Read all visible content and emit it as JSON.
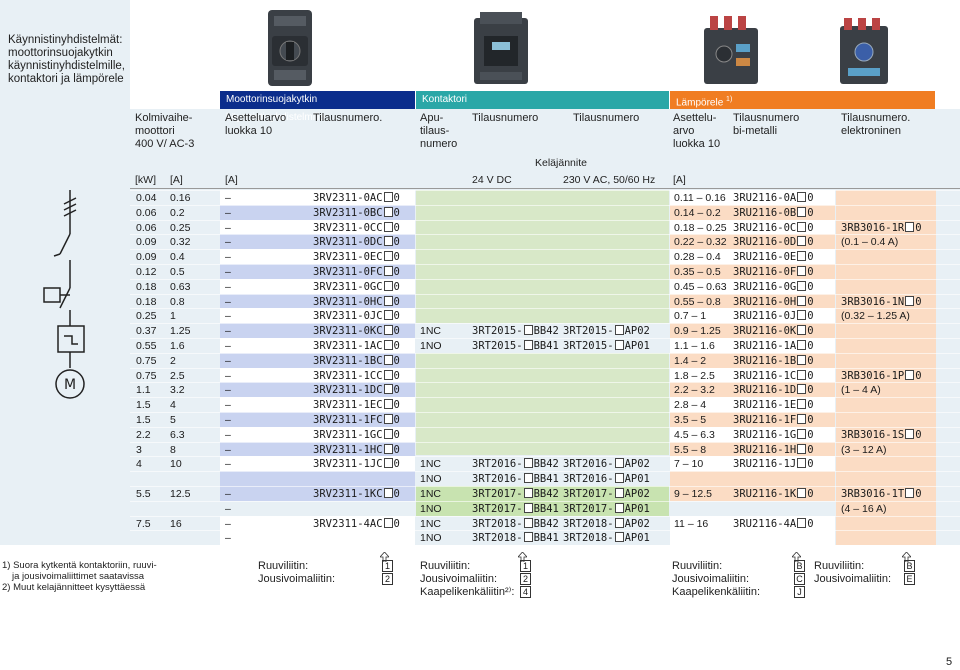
{
  "sidebar_title": "Käynnistinyhdistelmät: moottorinsuojakytkin käynnistinyhdistelmille, kontaktori ja lämpörele",
  "section_headers": {
    "mpcb": "Moottorinsuojakytkin käynnistinyhdistelmille",
    "contactor": "Kontaktori",
    "relay": "Lämpörele",
    "relay_note": "1)"
  },
  "col_headers": {
    "motor": "Kolmivaihe-\nmoottori\n400 V/ AC-3",
    "mpcb_setting": "Asetteluarvo\nluokka 10",
    "mpcb_order": "Tilausnumero.",
    "aux": "Apu-\ntilaus-\nnumero",
    "c_order1": "Tilausnumero",
    "c_order2": "Tilausnumero",
    "r_setting": "Asettelu-\narvo\nluokka 10",
    "r_bimetal": "Tilausnumero\nbi-metalli",
    "r_electronic": "Tilausnumero.\nelektroninen",
    "coil_voltage": "Keläjännite",
    "dc": "24 V DC",
    "ac": "230 V AC, 50/60 Hz"
  },
  "unit_headers": {
    "kw": "[kW]",
    "a": "[A]",
    "a2": "[A]",
    "a3": "[A]"
  },
  "rows": [
    {
      "kw": "0.04",
      "a": "0.16",
      "dash": "–",
      "mpcb": "3RV2311-0AC",
      "sfx": "0",
      "range": "0.11 – 0.16",
      "relay": "3RU2116-0A",
      "rsfx": "0"
    },
    {
      "kw": "0.06",
      "a": "0.2",
      "dash": "–",
      "mpcb": "3RV2311-0BC",
      "sfx": "0",
      "range": "0.14 – 0.2",
      "relay": "3RU2116-0B",
      "rsfx": "0"
    },
    {
      "kw": "0.06",
      "a": "0.25",
      "dash": "–",
      "mpcb": "3RV2311-0CC",
      "sfx": "0",
      "range": "0.18 – 0.25",
      "relay": "3RU2116-0C",
      "rsfx": "0"
    },
    {
      "kw": "0.09",
      "a": "0.32",
      "dash": "–",
      "mpcb": "3RV2311-0DC",
      "sfx": "0",
      "range": "0.22 – 0.32",
      "relay": "3RU2116-0D",
      "rsfx": "0"
    },
    {
      "kw": "0.09",
      "a": "0.4",
      "dash": "–",
      "mpcb": "3RV2311-0EC",
      "sfx": "0",
      "range": "0.28 – 0.4",
      "relay": "3RU2116-0E",
      "rsfx": "0"
    },
    {
      "kw": "0.12",
      "a": "0.5",
      "dash": "–",
      "mpcb": "3RV2311-0FC",
      "sfx": "0",
      "range": "0.35 – 0.5",
      "relay": "3RU2116-0F",
      "rsfx": "0"
    },
    {
      "kw": "0.18",
      "a": "0.63",
      "dash": "–",
      "mpcb": "3RV2311-0GC",
      "sfx": "0",
      "range": "0.45 – 0.63",
      "relay": "3RU2116-0G",
      "rsfx": "0"
    },
    {
      "kw": "0.18",
      "a": "0.8",
      "dash": "–",
      "mpcb": "3RV2311-0HC",
      "sfx": "0",
      "range": "0.55 – 0.8",
      "relay": "3RU2116-0H",
      "rsfx": "0"
    },
    {
      "kw": "0.25",
      "a": "1",
      "dash": "–",
      "mpcb": "3RV2311-0JC",
      "sfx": "0",
      "range": "0.7 – 1",
      "relay": "3RU2116-0J",
      "rsfx": "0"
    },
    {
      "kw": "0.37",
      "a": "1.25",
      "dash": "–",
      "mpcb": "3RV2311-0KC",
      "sfx": "0",
      "range": "0.9 – 1.25",
      "relay": "3RU2116-0K",
      "rsfx": "0"
    },
    {
      "kw": "0.55",
      "a": "1.6",
      "dash": "–",
      "mpcb": "3RV2311-1AC",
      "sfx": "0",
      "range": "1.1 – 1.6",
      "relay": "3RU2116-1A",
      "rsfx": "0"
    },
    {
      "kw": "0.75",
      "a": "2",
      "dash": "–",
      "mpcb": "3RV2311-1BC",
      "sfx": "0",
      "range": "1.4 – 2",
      "relay": "3RU2116-1B",
      "rsfx": "0"
    },
    {
      "kw": "0.75",
      "a": "2.5",
      "dash": "–",
      "mpcb": "3RV2311-1CC",
      "sfx": "0",
      "range": "1.8 – 2.5",
      "relay": "3RU2116-1C",
      "rsfx": "0"
    },
    {
      "kw": "1.1",
      "a": "3.2",
      "dash": "–",
      "mpcb": "3RV2311-1DC",
      "sfx": "0",
      "range": "2.2 – 3.2",
      "relay": "3RU2116-1D",
      "rsfx": "0"
    },
    {
      "kw": "1.5",
      "a": "4",
      "dash": "–",
      "mpcb": "3RV2311-1EC",
      "sfx": "0",
      "range": "2.8 – 4",
      "relay": "3RU2116-1E",
      "rsfx": "0"
    },
    {
      "kw": "1.5",
      "a": "5",
      "dash": "–",
      "mpcb": "3RV2311-1FC",
      "sfx": "0",
      "range": "3.5 – 5",
      "relay": "3RU2116-1F",
      "rsfx": "0"
    },
    {
      "kw": "2.2",
      "a": "6.3",
      "dash": "–",
      "mpcb": "3RV2311-1GC",
      "sfx": "0",
      "range": "4.5 – 6.3",
      "relay": "3RU2116-1G",
      "rsfx": "0"
    },
    {
      "kw": "3",
      "a": "8",
      "dash": "–",
      "mpcb": "3RV2311-1HC",
      "sfx": "0",
      "range": "5.5 – 8",
      "relay": "3RU2116-1H",
      "rsfx": "0"
    },
    {
      "kw": "4",
      "a": "10",
      "dash": "–",
      "mpcb": "3RV2311-1JC",
      "sfx": "0",
      "range": "7 – 10",
      "relay": "3RU2116-1J",
      "rsfx": "0"
    },
    {
      "kw": "",
      "a": "",
      "dash": "–",
      "mpcb": "",
      "sfx": "",
      "range": "",
      "relay": "",
      "rsfx": ""
    },
    {
      "kw": "5.5",
      "a": "12.5",
      "dash": "–",
      "mpcb": "3RV2311-1KC",
      "sfx": "0",
      "range": "9 – 12.5",
      "relay": "3RU2116-1K",
      "rsfx": "0"
    },
    {
      "kw": "",
      "a": "",
      "dash": "–",
      "mpcb": "",
      "sfx": "",
      "range": "",
      "relay": "",
      "rsfx": ""
    },
    {
      "kw": "7.5",
      "a": "16",
      "dash": "–",
      "mpcb": "3RV2311-4AC",
      "sfx": "0",
      "range": "11 – 16",
      "relay": "3RU2116-4A",
      "rsfx": "0"
    },
    {
      "kw": "",
      "a": "",
      "dash": "–",
      "mpcb": "",
      "sfx": "",
      "range": "",
      "relay": "",
      "rsfx": ""
    }
  ],
  "contactors": [
    {
      "row": 9,
      "aux": "1NC",
      "dc": "3RT2015-",
      "dcs": "BB42",
      "ac": "3RT2015-",
      "acs": "AP02"
    },
    {
      "row": 10,
      "aux": "1NO",
      "dc": "3RT2015-",
      "dcs": "BB41",
      "ac": "3RT2015-",
      "acs": "AP01"
    },
    {
      "row": 18,
      "aux": "1NC",
      "dc": "3RT2016-",
      "dcs": "BB42",
      "ac": "3RT2016-",
      "acs": "AP02"
    },
    {
      "row": 19,
      "aux": "1NO",
      "dc": "3RT2016-",
      "dcs": "BB41",
      "ac": "3RT2016-",
      "acs": "AP01"
    },
    {
      "row": 20,
      "aux": "1NC",
      "dc": "3RT2017-",
      "dcs": "BB42",
      "ac": "3RT2017-",
      "acs": "AP02"
    },
    {
      "row": 21,
      "aux": "1NO",
      "dc": "3RT2017-",
      "dcs": "BB41",
      "ac": "3RT2017-",
      "acs": "AP01"
    },
    {
      "row": 22,
      "aux": "1NC",
      "dc": "3RT2018-",
      "dcs": "BB42",
      "ac": "3RT2018-",
      "acs": "AP02"
    },
    {
      "row": 23,
      "aux": "1NO",
      "dc": "3RT2018-",
      "dcs": "BB41",
      "ac": "3RT2018-",
      "acs": "AP01"
    }
  ],
  "electronic_relays": [
    {
      "row": 2,
      "code": "3RB3016-1R",
      "sfx": "0",
      "range": "(0.1 – 0.4 A)"
    },
    {
      "row": 7,
      "code": "3RB3016-1N",
      "sfx": "0",
      "range": "(0.32 – 1.25 A)"
    },
    {
      "row": 12,
      "code": "3RB3016-1P",
      "sfx": "0",
      "range": "(1 – 4 A)"
    },
    {
      "row": 16,
      "code": "3RB3016-1S",
      "sfx": "0",
      "range": "(3 – 12 A)"
    },
    {
      "row": 20,
      "code": "3RB3016-1T",
      "sfx": "0",
      "range": "(4 – 16 A)"
    }
  ],
  "footnotes": [
    "1) Suora kytkentä kontaktoriin, ruuvi-",
    "ja jousivoimaliittimet saatavissa",
    "2) Muut kelajännitteet kysyttäessä"
  ],
  "terminals": {
    "mpcb": [
      {
        "label": "Ruuviliitin:",
        "key": "1"
      },
      {
        "label": "Jousivoimaliitin:",
        "key": "2"
      }
    ],
    "contactor": [
      {
        "label": "Ruuviliitin:",
        "key": "1"
      },
      {
        "label": "Jousivoimaliitin:",
        "key": "2"
      },
      {
        "label": "Kaapelikenkäliitin²⁾:",
        "key": "4"
      }
    ],
    "relay": [
      {
        "label": "Ruuviliitin:",
        "key": "B"
      },
      {
        "label": "Jousivoimaliitin:",
        "key": "C"
      },
      {
        "label": "Kaapelikenkäliitin:",
        "key": "J"
      }
    ],
    "electronic": [
      {
        "label": "Ruuviliitin:",
        "key": "B"
      },
      {
        "label": "Jousivoimaliitin:",
        "key": "E"
      }
    ]
  },
  "page_number": "5",
  "colors": {
    "mpcb_header": "#0b2d8c",
    "contactor_header": "#2aa7a7",
    "relay_header": "#f07d22",
    "blue_fill": "#c9d3f0",
    "green_fill": "#d8e8c8",
    "peach_fill": "#fbdcc4",
    "sidebar": "#e8f0f5",
    "green_highlight": "#c8e3b0"
  },
  "icons": [
    "mpcb-device-icon",
    "contactor-device-icon",
    "overload-relay-icon",
    "electronic-relay-icon",
    "circuit-symbol-icon"
  ]
}
